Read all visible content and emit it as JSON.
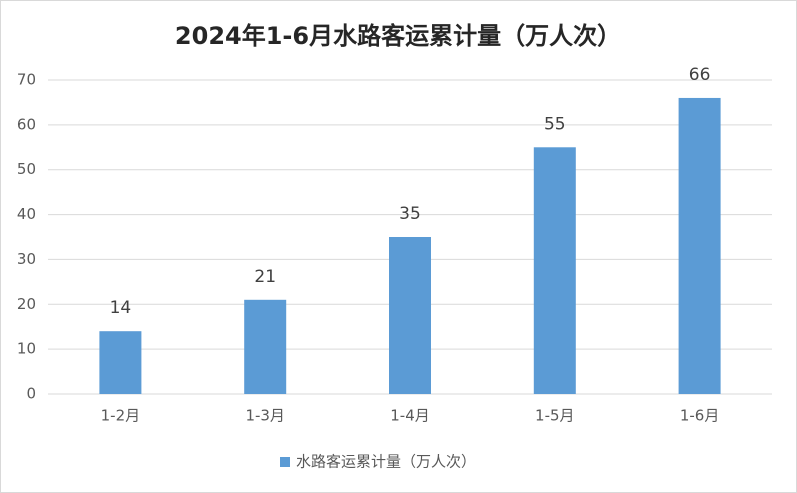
{
  "chart_data": {
    "type": "bar",
    "title": "2024年1-6月水路客运累计量（万人次）",
    "categories": [
      "1-2月",
      "1-3月",
      "1-4月",
      "1-5月",
      "1-6月"
    ],
    "series": [
      {
        "name": "水路客运累计量（万人次）",
        "color": "#5b9bd5",
        "values": [
          14,
          21,
          35,
          55,
          66
        ]
      }
    ],
    "ylim": [
      0,
      70
    ],
    "yticks": [
      0,
      10,
      20,
      30,
      40,
      50,
      60,
      70
    ],
    "grid": true,
    "legend": "bottom"
  }
}
